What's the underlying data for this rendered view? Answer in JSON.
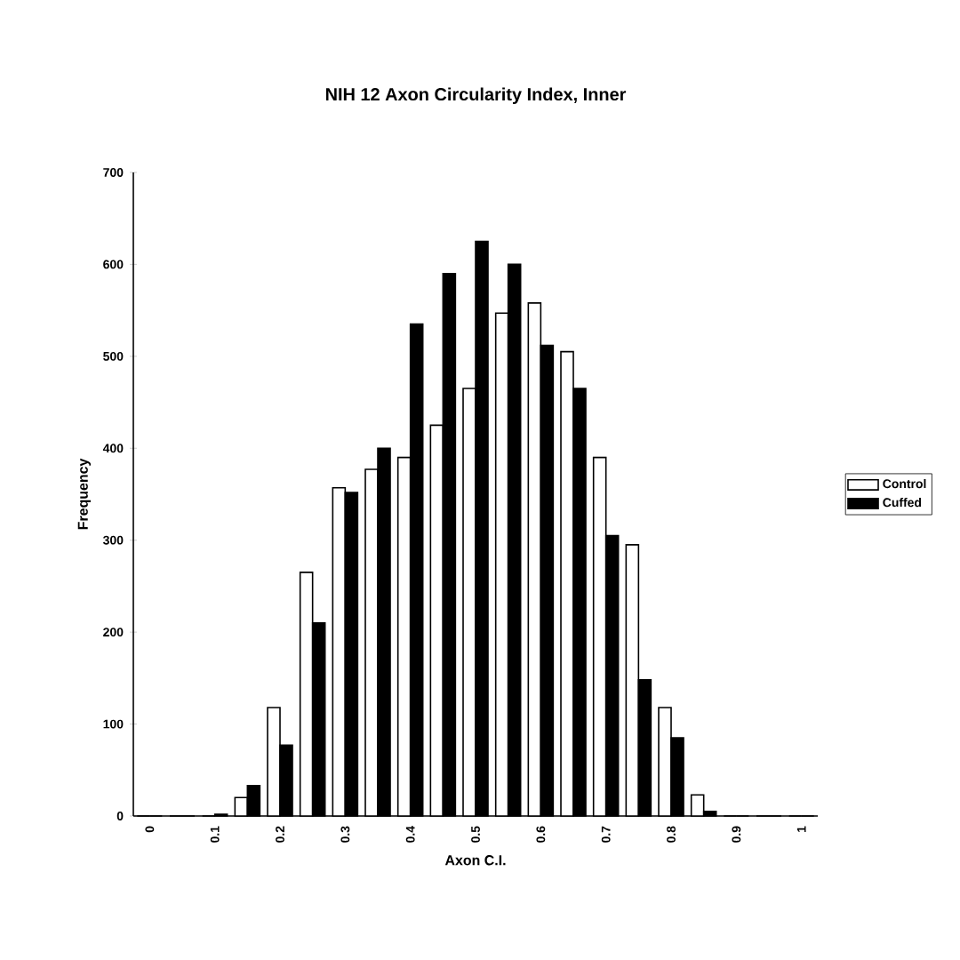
{
  "chart_data": {
    "type": "bar",
    "title": "NIH 12 Axon Circularity Index, Inner",
    "xlabel": "Axon C.I.",
    "ylabel": "Frequency",
    "categories": [
      "0",
      null,
      "0.1",
      null,
      "0.2",
      null,
      "0.3",
      null,
      "0.4",
      null,
      "0.5",
      null,
      "0.6",
      null,
      "0.7",
      null,
      "0.8",
      null,
      "0.9",
      null,
      "1"
    ],
    "series": [
      {
        "name": "Control",
        "color": "#ffffff",
        "values": [
          0,
          0,
          0,
          20,
          118,
          265,
          357,
          377,
          390,
          425,
          465,
          547,
          558,
          505,
          390,
          295,
          118,
          23,
          0,
          0,
          0
        ]
      },
      {
        "name": "Cuffed",
        "color": "#000000",
        "values": [
          0,
          0,
          2,
          33,
          77,
          210,
          352,
          400,
          535,
          590,
          625,
          600,
          512,
          465,
          305,
          148,
          85,
          5,
          0,
          0,
          0
        ]
      }
    ],
    "ylim": [
      0,
      700
    ],
    "yticks": [
      0,
      100,
      200,
      300,
      400,
      500,
      600,
      700
    ],
    "grid": false,
    "legend": "right"
  }
}
